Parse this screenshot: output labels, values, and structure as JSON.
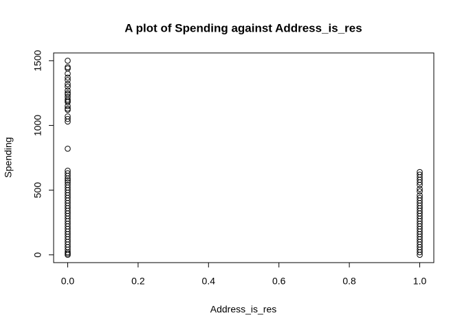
{
  "chart_data": {
    "type": "scatter",
    "title": "A plot of Spending against Address_is_res",
    "x_label": "Address_is_res",
    "y_label": "Spending",
    "xlim": [
      -0.04,
      1.04
    ],
    "ylim": [
      -60,
      1560
    ],
    "xticks": [
      {
        "value": 0,
        "label": "0.0"
      },
      0.2,
      0.4,
      0.6,
      0.8,
      {
        "value": 1,
        "label": "1.0"
      }
    ],
    "yticks": [
      0,
      500,
      1000,
      1500
    ],
    "color": "#000000",
    "x": [
      0,
      0,
      0,
      0,
      0,
      0,
      0,
      0,
      0,
      0,
      0,
      0,
      0,
      0,
      0,
      0,
      0,
      0,
      0,
      0,
      0,
      0,
      0,
      0,
      0,
      0,
      0,
      0,
      0,
      0,
      0,
      0,
      0,
      0,
      0,
      0,
      0,
      0,
      0,
      0,
      0,
      0,
      0,
      0,
      0,
      0,
      0,
      0,
      0,
      0,
      0,
      0,
      0,
      0,
      0,
      0,
      0,
      1,
      1,
      1,
      1,
      1,
      1,
      1,
      1,
      1,
      1,
      1,
      1,
      1,
      1,
      1,
      1,
      1,
      1,
      1,
      1,
      1,
      1,
      1,
      1,
      1,
      1,
      1,
      1,
      1,
      1,
      1,
      1
    ],
    "values": [
      1500,
      1450,
      1440,
      1400,
      1370,
      1350,
      1320,
      1300,
      1270,
      1250,
      1240,
      1220,
      1200,
      1190,
      1180,
      1150,
      1130,
      1120,
      1070,
      1050,
      1030,
      820,
      650,
      630,
      610,
      590,
      575,
      560,
      540,
      520,
      500,
      480,
      460,
      440,
      420,
      400,
      380,
      360,
      340,
      320,
      300,
      280,
      260,
      240,
      220,
      200,
      180,
      160,
      140,
      120,
      100,
      80,
      60,
      40,
      20,
      10,
      0,
      640,
      620,
      600,
      580,
      560,
      540,
      510,
      490,
      460,
      440,
      420,
      400,
      380,
      360,
      340,
      320,
      300,
      280,
      260,
      240,
      220,
      200,
      180,
      160,
      140,
      120,
      100,
      80,
      60,
      40,
      20,
      0
    ]
  }
}
